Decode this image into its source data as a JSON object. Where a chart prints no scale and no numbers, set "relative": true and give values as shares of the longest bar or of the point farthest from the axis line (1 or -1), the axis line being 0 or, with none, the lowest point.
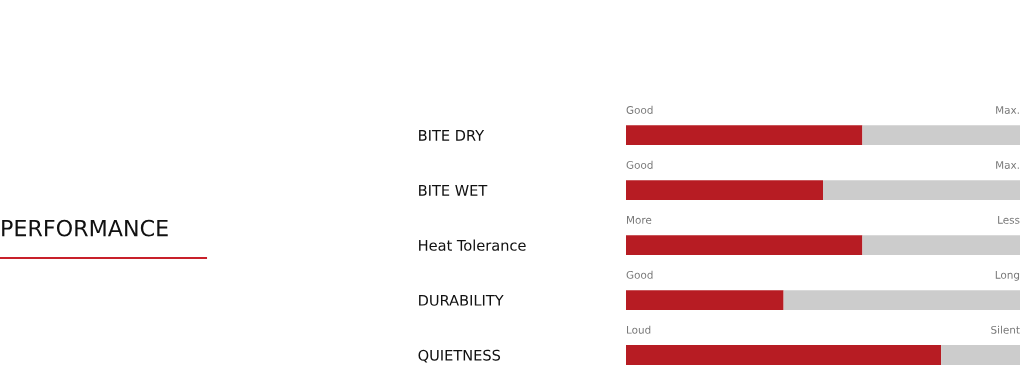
{
  "chart_data": {
    "type": "bar",
    "orientation": "horizontal",
    "stacked": true,
    "relative": true,
    "title": "PERFORMANCE",
    "categories": [
      "BITE DRY",
      "BITE WET",
      "Heat Tolerance",
      "DURABILITY",
      "QUIETNESS"
    ],
    "series": [
      {
        "color": "#b71c23",
        "values": [
          0.6,
          0.5,
          0.6,
          0.4,
          0.8
        ]
      },
      {
        "color": "#cccccc",
        "values": [
          0.4,
          0.5,
          0.4,
          0.6,
          0.2
        ]
      }
    ],
    "annotations": [
      "Good",
      "Max.",
      "Good",
      "Max.",
      "More",
      "Less",
      "Good",
      "Long",
      "Loud",
      "Silent"
    ],
    "legend": false
  }
}
